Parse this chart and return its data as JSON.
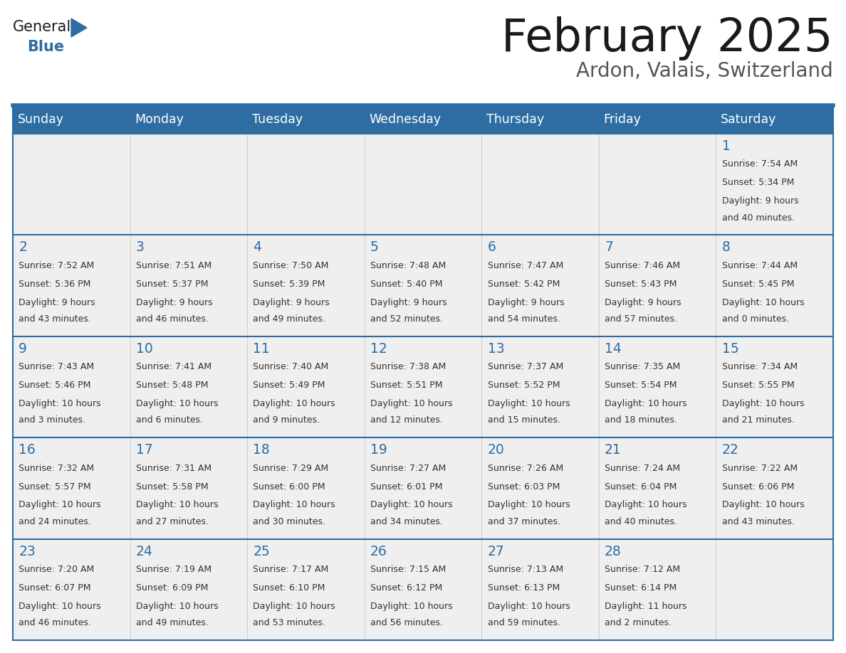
{
  "title": "February 2025",
  "subtitle": "Ardon, Valais, Switzerland",
  "header_bg": "#2E6DA4",
  "header_text_color": "#FFFFFF",
  "cell_bg": "#EFEFEF",
  "border_color": "#2E6DA4",
  "day_number_color": "#2E6DA4",
  "text_color": "#333333",
  "days_of_week": [
    "Sunday",
    "Monday",
    "Tuesday",
    "Wednesday",
    "Thursday",
    "Friday",
    "Saturday"
  ],
  "calendar_data": [
    [
      null,
      null,
      null,
      null,
      null,
      null,
      {
        "day": 1,
        "sunrise": "Sunrise: 7:54 AM",
        "sunset": "Sunset: 5:34 PM",
        "daylight": "Daylight: 9 hours",
        "daylight2": "and 40 minutes."
      }
    ],
    [
      {
        "day": 2,
        "sunrise": "Sunrise: 7:52 AM",
        "sunset": "Sunset: 5:36 PM",
        "daylight": "Daylight: 9 hours",
        "daylight2": "and 43 minutes."
      },
      {
        "day": 3,
        "sunrise": "Sunrise: 7:51 AM",
        "sunset": "Sunset: 5:37 PM",
        "daylight": "Daylight: 9 hours",
        "daylight2": "and 46 minutes."
      },
      {
        "day": 4,
        "sunrise": "Sunrise: 7:50 AM",
        "sunset": "Sunset: 5:39 PM",
        "daylight": "Daylight: 9 hours",
        "daylight2": "and 49 minutes."
      },
      {
        "day": 5,
        "sunrise": "Sunrise: 7:48 AM",
        "sunset": "Sunset: 5:40 PM",
        "daylight": "Daylight: 9 hours",
        "daylight2": "and 52 minutes."
      },
      {
        "day": 6,
        "sunrise": "Sunrise: 7:47 AM",
        "sunset": "Sunset: 5:42 PM",
        "daylight": "Daylight: 9 hours",
        "daylight2": "and 54 minutes."
      },
      {
        "day": 7,
        "sunrise": "Sunrise: 7:46 AM",
        "sunset": "Sunset: 5:43 PM",
        "daylight": "Daylight: 9 hours",
        "daylight2": "and 57 minutes."
      },
      {
        "day": 8,
        "sunrise": "Sunrise: 7:44 AM",
        "sunset": "Sunset: 5:45 PM",
        "daylight": "Daylight: 10 hours",
        "daylight2": "and 0 minutes."
      }
    ],
    [
      {
        "day": 9,
        "sunrise": "Sunrise: 7:43 AM",
        "sunset": "Sunset: 5:46 PM",
        "daylight": "Daylight: 10 hours",
        "daylight2": "and 3 minutes."
      },
      {
        "day": 10,
        "sunrise": "Sunrise: 7:41 AM",
        "sunset": "Sunset: 5:48 PM",
        "daylight": "Daylight: 10 hours",
        "daylight2": "and 6 minutes."
      },
      {
        "day": 11,
        "sunrise": "Sunrise: 7:40 AM",
        "sunset": "Sunset: 5:49 PM",
        "daylight": "Daylight: 10 hours",
        "daylight2": "and 9 minutes."
      },
      {
        "day": 12,
        "sunrise": "Sunrise: 7:38 AM",
        "sunset": "Sunset: 5:51 PM",
        "daylight": "Daylight: 10 hours",
        "daylight2": "and 12 minutes."
      },
      {
        "day": 13,
        "sunrise": "Sunrise: 7:37 AM",
        "sunset": "Sunset: 5:52 PM",
        "daylight": "Daylight: 10 hours",
        "daylight2": "and 15 minutes."
      },
      {
        "day": 14,
        "sunrise": "Sunrise: 7:35 AM",
        "sunset": "Sunset: 5:54 PM",
        "daylight": "Daylight: 10 hours",
        "daylight2": "and 18 minutes."
      },
      {
        "day": 15,
        "sunrise": "Sunrise: 7:34 AM",
        "sunset": "Sunset: 5:55 PM",
        "daylight": "Daylight: 10 hours",
        "daylight2": "and 21 minutes."
      }
    ],
    [
      {
        "day": 16,
        "sunrise": "Sunrise: 7:32 AM",
        "sunset": "Sunset: 5:57 PM",
        "daylight": "Daylight: 10 hours",
        "daylight2": "and 24 minutes."
      },
      {
        "day": 17,
        "sunrise": "Sunrise: 7:31 AM",
        "sunset": "Sunset: 5:58 PM",
        "daylight": "Daylight: 10 hours",
        "daylight2": "and 27 minutes."
      },
      {
        "day": 18,
        "sunrise": "Sunrise: 7:29 AM",
        "sunset": "Sunset: 6:00 PM",
        "daylight": "Daylight: 10 hours",
        "daylight2": "and 30 minutes."
      },
      {
        "day": 19,
        "sunrise": "Sunrise: 7:27 AM",
        "sunset": "Sunset: 6:01 PM",
        "daylight": "Daylight: 10 hours",
        "daylight2": "and 34 minutes."
      },
      {
        "day": 20,
        "sunrise": "Sunrise: 7:26 AM",
        "sunset": "Sunset: 6:03 PM",
        "daylight": "Daylight: 10 hours",
        "daylight2": "and 37 minutes."
      },
      {
        "day": 21,
        "sunrise": "Sunrise: 7:24 AM",
        "sunset": "Sunset: 6:04 PM",
        "daylight": "Daylight: 10 hours",
        "daylight2": "and 40 minutes."
      },
      {
        "day": 22,
        "sunrise": "Sunrise: 7:22 AM",
        "sunset": "Sunset: 6:06 PM",
        "daylight": "Daylight: 10 hours",
        "daylight2": "and 43 minutes."
      }
    ],
    [
      {
        "day": 23,
        "sunrise": "Sunrise: 7:20 AM",
        "sunset": "Sunset: 6:07 PM",
        "daylight": "Daylight: 10 hours",
        "daylight2": "and 46 minutes."
      },
      {
        "day": 24,
        "sunrise": "Sunrise: 7:19 AM",
        "sunset": "Sunset: 6:09 PM",
        "daylight": "Daylight: 10 hours",
        "daylight2": "and 49 minutes."
      },
      {
        "day": 25,
        "sunrise": "Sunrise: 7:17 AM",
        "sunset": "Sunset: 6:10 PM",
        "daylight": "Daylight: 10 hours",
        "daylight2": "and 53 minutes."
      },
      {
        "day": 26,
        "sunrise": "Sunrise: 7:15 AM",
        "sunset": "Sunset: 6:12 PM",
        "daylight": "Daylight: 10 hours",
        "daylight2": "and 56 minutes."
      },
      {
        "day": 27,
        "sunrise": "Sunrise: 7:13 AM",
        "sunset": "Sunset: 6:13 PM",
        "daylight": "Daylight: 10 hours",
        "daylight2": "and 59 minutes."
      },
      {
        "day": 28,
        "sunrise": "Sunrise: 7:12 AM",
        "sunset": "Sunset: 6:14 PM",
        "daylight": "Daylight: 11 hours",
        "daylight2": "and 2 minutes."
      },
      null
    ]
  ]
}
